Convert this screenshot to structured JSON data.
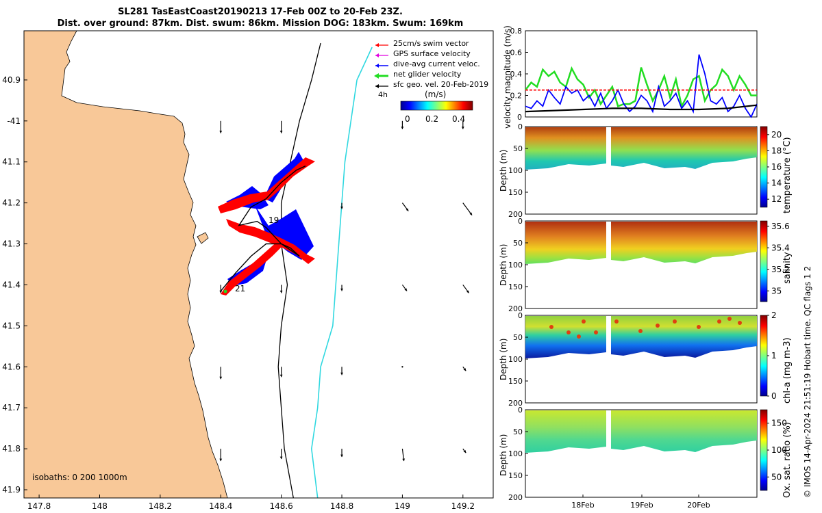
{
  "title_line1": "SL281 TasEastCoast20190213 17-Feb 00Z to 20-Feb 23Z.",
  "title_line2": "Dist. over ground: 87km. Dist. swum: 86km. Mission DOG: 183km. Swum: 169km",
  "side_credit": "© IMOS 14-Apr-2024 21:51:19 Hobart time. QC flags 1  2",
  "colors": {
    "land": "#f8c898",
    "track_red": "#ff0000",
    "track_blue": "#0000ff",
    "cyan": "#30d8e0",
    "green": "#22dd22"
  },
  "chart_data": [
    {
      "type": "map",
      "xlim": [
        147.75,
        149.3
      ],
      "ylim": [
        -41.92,
        -40.78
      ],
      "x_ticks": [
        147.8,
        148,
        148.2,
        148.4,
        148.6,
        148.8,
        149,
        149.2
      ],
      "x_tick_labels": [
        "147.8",
        "148",
        "148.2",
        "148.4",
        "148.6",
        "148.8",
        "149",
        "149.2"
      ],
      "y_ticks": [
        -40.9,
        -41,
        -41.1,
        -41.2,
        -41.3,
        -41.4,
        -41.5,
        -41.6,
        -41.7,
        -41.8,
        -41.9
      ],
      "y_tick_labels": [
        "40.9",
        "-41",
        "41.1",
        "41.2",
        "41.3",
        "41.4",
        "41.5",
        "41.6",
        "41.7",
        "41.8",
        "41.9"
      ],
      "legend": [
        "25cm/s swim vector",
        "GPS surface velocity",
        "dive-avg current veloc.",
        "net glider velocity",
        "sfc geo. vel. 20-Feb-2019"
      ],
      "legend_extra": "4h",
      "colorbar_title": "(m/s)",
      "colorbar_ticks": [
        "0",
        "0.2",
        "0.4"
      ],
      "isobath_label": "isobaths: 0   200  1000m",
      "day_labels": [
        "19",
        "21"
      ],
      "glider_track": [
        [
          148.4,
          -41.415
        ],
        [
          148.45,
          -41.37
        ],
        [
          148.5,
          -41.33
        ],
        [
          148.55,
          -41.3
        ],
        [
          148.6,
          -41.3
        ],
        [
          148.63,
          -41.31
        ],
        [
          148.66,
          -41.33
        ],
        [
          148.6,
          -41.3
        ],
        [
          148.55,
          -41.26
        ],
        [
          148.52,
          -41.245
        ],
        [
          148.46,
          -41.255
        ],
        [
          148.5,
          -41.21
        ],
        [
          148.55,
          -41.19
        ],
        [
          148.6,
          -41.15
        ],
        [
          148.65,
          -41.12
        ],
        [
          148.68,
          -41.11
        ]
      ],
      "isobath_200m": [
        [
          148.73,
          -40.81
        ],
        [
          148.7,
          -40.9
        ],
        [
          148.66,
          -41.0
        ],
        [
          148.63,
          -41.1
        ],
        [
          148.6,
          -41.2
        ],
        [
          148.6,
          -41.3
        ],
        [
          148.62,
          -41.4
        ],
        [
          148.6,
          -41.5
        ],
        [
          148.59,
          -41.6
        ],
        [
          148.6,
          -41.7
        ],
        [
          148.61,
          -41.8
        ],
        [
          148.64,
          -41.92
        ]
      ],
      "isobath_1000m": [
        [
          148.9,
          -40.82
        ],
        [
          148.85,
          -40.9
        ],
        [
          148.83,
          -41.0
        ],
        [
          148.81,
          -41.1
        ],
        [
          148.8,
          -41.2
        ],
        [
          148.79,
          -41.3
        ],
        [
          148.78,
          -41.4
        ],
        [
          148.77,
          -41.5
        ],
        [
          148.73,
          -41.6
        ],
        [
          148.72,
          -41.7
        ],
        [
          148.7,
          -41.8
        ],
        [
          148.72,
          -41.92
        ]
      ],
      "geo_vectors": [
        [
          148.4,
          -41.0,
          0,
          -0.03
        ],
        [
          148.6,
          -41.0,
          0,
          -0.03
        ],
        [
          149.0,
          -41.0,
          0,
          -0.02
        ],
        [
          149.2,
          -41.0,
          0,
          -0.02
        ],
        [
          148.8,
          -41.2,
          0,
          -0.015
        ],
        [
          149.0,
          -41.2,
          0.02,
          -0.02
        ],
        [
          149.2,
          -41.2,
          0.03,
          -0.03
        ],
        [
          148.4,
          -41.4,
          0,
          -0.02
        ],
        [
          148.6,
          -41.4,
          0,
          -0.02
        ],
        [
          148.8,
          -41.4,
          0,
          -0.015
        ],
        [
          149.0,
          -41.4,
          0.015,
          -0.015
        ],
        [
          149.2,
          -41.4,
          0.02,
          -0.02
        ],
        [
          148.4,
          -41.6,
          0,
          -0.03
        ],
        [
          148.6,
          -41.6,
          0,
          -0.025
        ],
        [
          148.8,
          -41.6,
          0,
          -0.02
        ],
        [
          149.0,
          -41.6,
          0,
          0
        ],
        [
          149.2,
          -41.6,
          0.01,
          -0.01
        ],
        [
          148.4,
          -41.8,
          0,
          -0.03
        ],
        [
          148.6,
          -41.8,
          0,
          -0.025
        ],
        [
          148.8,
          -41.8,
          0,
          -0.02
        ],
        [
          149.0,
          -41.8,
          0.005,
          -0.03
        ],
        [
          149.2,
          -41.8,
          0.01,
          -0.01
        ]
      ]
    },
    {
      "type": "line",
      "ylabel": "velocity magnitude (m/s)",
      "ylim": [
        0,
        0.8
      ],
      "y_ticks": [
        0,
        0.2,
        0.4,
        0.6,
        0.8
      ],
      "x_range": [
        17,
        21
      ],
      "series": [
        {
          "name": "net glider velocity",
          "color": "#22dd22",
          "x": [
            17,
            17.1,
            17.2,
            17.3,
            17.4,
            17.5,
            17.6,
            17.7,
            17.8,
            17.9,
            18.0,
            18.1,
            18.2,
            18.3,
            18.4,
            18.5,
            18.6,
            18.7,
            18.8,
            18.9,
            19.0,
            19.1,
            19.2,
            19.3,
            19.4,
            19.5,
            19.6,
            19.7,
            19.8,
            19.9,
            20.0,
            20.1,
            20.2,
            20.3,
            20.4,
            20.5,
            20.6,
            20.7,
            20.8,
            20.9,
            21.0
          ],
          "values": [
            0.25,
            0.32,
            0.28,
            0.44,
            0.38,
            0.42,
            0.32,
            0.28,
            0.45,
            0.35,
            0.3,
            0.18,
            0.25,
            0.12,
            0.2,
            0.28,
            0.1,
            0.12,
            0.12,
            0.15,
            0.46,
            0.3,
            0.15,
            0.25,
            0.38,
            0.18,
            0.35,
            0.1,
            0.2,
            0.35,
            0.38,
            0.15,
            0.25,
            0.3,
            0.44,
            0.38,
            0.25,
            0.38,
            0.3,
            0.2,
            0.2
          ]
        },
        {
          "name": "dive-avg current veloc.",
          "color": "#0000ff",
          "x": [
            17,
            17.1,
            17.2,
            17.3,
            17.4,
            17.5,
            17.6,
            17.7,
            17.8,
            17.9,
            18.0,
            18.1,
            18.2,
            18.3,
            18.4,
            18.5,
            18.6,
            18.7,
            18.8,
            18.9,
            19.0,
            19.1,
            19.2,
            19.3,
            19.4,
            19.5,
            19.6,
            19.7,
            19.8,
            19.9,
            20.0,
            20.1,
            20.2,
            20.3,
            20.4,
            20.5,
            20.6,
            20.7,
            20.8,
            20.9,
            21.0
          ],
          "values": [
            0.1,
            0.08,
            0.15,
            0.1,
            0.25,
            0.18,
            0.12,
            0.28,
            0.22,
            0.25,
            0.15,
            0.2,
            0.1,
            0.22,
            0.08,
            0.15,
            0.25,
            0.12,
            0.05,
            0.1,
            0.2,
            0.15,
            0.05,
            0.28,
            0.1,
            0.15,
            0.22,
            0.08,
            0.15,
            0.05,
            0.58,
            0.4,
            0.15,
            0.12,
            0.18,
            0.05,
            0.1,
            0.2,
            0.08,
            0.0,
            0.12
          ]
        },
        {
          "name": "25cm/s swim vector",
          "color": "#ff0000",
          "x": [
            17,
            21
          ],
          "values": [
            0.25,
            0.25
          ]
        },
        {
          "name": "sfc geo. vel.",
          "color": "#000000",
          "x": [
            17,
            17.5,
            18,
            18.5,
            19,
            19.5,
            20,
            20.5,
            21
          ],
          "values": [
            0.05,
            0.06,
            0.07,
            0.08,
            0.08,
            0.07,
            0.07,
            0.08,
            0.11
          ]
        }
      ]
    },
    {
      "type": "heatmap",
      "variable": "temperature",
      "ylabel": "Depth (m)",
      "colorbar_label": "temperature (°C)",
      "ylim": [
        200,
        0
      ],
      "y_ticks": [
        "0",
        "50",
        "100",
        "150",
        "200"
      ],
      "colorbar_ticks": [
        "20",
        "18",
        "16",
        "14",
        "12"
      ],
      "clim": [
        11,
        21
      ]
    },
    {
      "type": "heatmap",
      "variable": "salinity",
      "ylabel": "Depth (m)",
      "colorbar_label": "salinity",
      "ylim": [
        200,
        0
      ],
      "y_ticks": [
        "0",
        "50",
        "100",
        "150",
        "200"
      ],
      "colorbar_ticks": [
        "35.6",
        "35.4",
        "35.2",
        "35"
      ],
      "clim": [
        34.9,
        35.65
      ]
    },
    {
      "type": "heatmap",
      "variable": "chl-a",
      "ylabel": "Depth (m)",
      "colorbar_label": "chl-a (mg m-3)",
      "ylim": [
        200,
        0
      ],
      "y_ticks": [
        "0",
        "50",
        "100",
        "150",
        "200"
      ],
      "colorbar_ticks": [
        "2",
        "1",
        "0"
      ],
      "clim": [
        0,
        2
      ]
    },
    {
      "type": "heatmap",
      "variable": "oxygen saturation",
      "ylabel": "Depth (m)",
      "colorbar_label": "Ox. sat. ratio (%)",
      "ylim": [
        200,
        0
      ],
      "y_ticks": [
        "0",
        "50",
        "100",
        "150",
        "200"
      ],
      "colorbar_ticks": [
        "150",
        "100",
        "50"
      ],
      "clim": [
        25,
        175
      ],
      "x_tick_labels": [
        "18Feb",
        "19Feb",
        "20Feb"
      ]
    }
  ]
}
